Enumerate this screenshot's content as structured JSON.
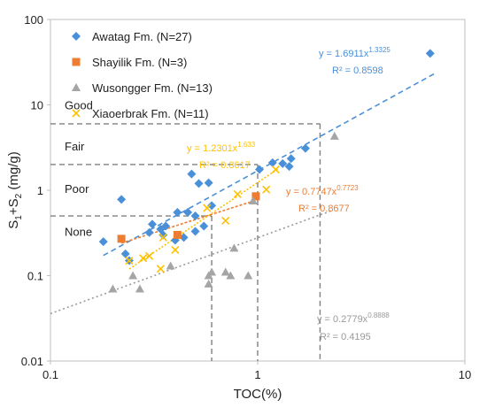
{
  "chart_data": {
    "type": "scatter",
    "xlabel": "TOC(%)",
    "ylabel": {
      "base": "S",
      "sub1": "1",
      "mid": "+S",
      "sub2": "2",
      "tail": " (mg/g)"
    },
    "xscale": "log",
    "yscale": "log",
    "xlim": [
      0.1,
      10
    ],
    "ylim": [
      0.01,
      100
    ],
    "xticks": [
      {
        "v": 0.1,
        "label": "0.1"
      },
      {
        "v": 1,
        "label": "1"
      },
      {
        "v": 10,
        "label": "10"
      }
    ],
    "yticks": [
      {
        "v": 0.01,
        "label": "0.01"
      },
      {
        "v": 0.1,
        "label": "0.1"
      },
      {
        "v": 1,
        "label": "1"
      },
      {
        "v": 10,
        "label": "10"
      },
      {
        "v": 100,
        "label": "100"
      }
    ],
    "legend_position": "top-left",
    "colors": {
      "awatag": "#4a90d9",
      "shayilik": "#ed7d31",
      "wusongger": "#a5a5a5",
      "xiaoerbrak": "#ffc000"
    },
    "series": [
      {
        "name": "Awatag Fm. (N=27)",
        "marker": "diamond",
        "color": "#4a90d9",
        "points": [
          [
            0.18,
            0.25
          ],
          [
            0.22,
            0.78
          ],
          [
            0.23,
            0.18
          ],
          [
            0.24,
            0.15
          ],
          [
            0.3,
            0.32
          ],
          [
            0.31,
            0.4
          ],
          [
            0.34,
            0.35
          ],
          [
            0.35,
            0.3
          ],
          [
            0.4,
            0.26
          ],
          [
            0.41,
            0.55
          ],
          [
            0.46,
            0.55
          ],
          [
            0.48,
            1.55
          ],
          [
            0.5,
            0.5
          ],
          [
            0.52,
            1.2
          ],
          [
            0.55,
            0.38
          ],
          [
            0.58,
            1.22
          ],
          [
            0.6,
            0.66
          ],
          [
            1.02,
            1.75
          ],
          [
            1.18,
            2.1
          ],
          [
            1.32,
            2.05
          ],
          [
            1.42,
            1.9
          ],
          [
            1.45,
            2.35
          ],
          [
            1.7,
            3.1
          ],
          [
            6.8,
            40
          ],
          [
            0.36,
            0.38
          ],
          [
            0.44,
            0.28
          ],
          [
            0.5,
            0.33
          ]
        ]
      },
      {
        "name": "Shayilik Fm. (N=3)",
        "marker": "square",
        "color": "#ed7d31",
        "points": [
          [
            0.22,
            0.27
          ],
          [
            0.41,
            0.3
          ],
          [
            0.98,
            0.85
          ]
        ]
      },
      {
        "name": "Wusongger Fm. (N=13)",
        "marker": "triangle",
        "color": "#a5a5a5",
        "points": [
          [
            0.2,
            0.07
          ],
          [
            0.25,
            0.1
          ],
          [
            0.27,
            0.07
          ],
          [
            0.58,
            0.08
          ],
          [
            0.58,
            0.1
          ],
          [
            0.6,
            0.11
          ],
          [
            0.7,
            0.11
          ],
          [
            0.74,
            0.1
          ],
          [
            0.77,
            0.21
          ],
          [
            0.9,
            0.1
          ],
          [
            0.95,
            0.75
          ],
          [
            2.35,
            4.3
          ],
          [
            0.38,
            0.13
          ]
        ]
      },
      {
        "name": "Xiaoerbrak Fm. (N=11)",
        "marker": "x",
        "color": "#ffc000",
        "points": [
          [
            0.24,
            0.15
          ],
          [
            0.28,
            0.16
          ],
          [
            0.3,
            0.17
          ],
          [
            0.34,
            0.12
          ],
          [
            0.35,
            0.28
          ],
          [
            0.4,
            0.2
          ],
          [
            0.57,
            0.62
          ],
          [
            0.7,
            0.44
          ],
          [
            0.8,
            0.9
          ],
          [
            1.1,
            1.02
          ],
          [
            1.22,
            1.75
          ]
        ]
      }
    ],
    "trendlines": [
      {
        "series": 0,
        "a": 1.6911,
        "b": 1.3325,
        "range": [
          0.18,
          7.2
        ],
        "color": "#4a90d9",
        "dash": "6,4",
        "eq": {
          "prefix": "y = 1.6911x",
          "exp": "1.3325"
        },
        "r2": "R² = 0.8598"
      },
      {
        "series": 1,
        "a": 0.7747,
        "b": 0.7723,
        "range": [
          0.22,
          1.0
        ],
        "color": "#ed7d31",
        "dash": "3,2",
        "eq": {
          "prefix": "y = 0.7747x",
          "exp": "0.7723"
        },
        "r2": "R² = 0.8677"
      },
      {
        "series": 2,
        "a": 0.2779,
        "b": 0.8888,
        "range": [
          0.1,
          2.3
        ],
        "color": "#9a9a9a",
        "dash": "2,3",
        "eq": {
          "prefix": "y = 0.2779x",
          "exp": "0.8888"
        },
        "r2": "R² = 0.4195"
      },
      {
        "series": 3,
        "a": 1.2301,
        "b": 1.633,
        "range": [
          0.24,
          1.25
        ],
        "color": "#ffc000",
        "dash": "2,2",
        "eq": {
          "prefix": "y = 1.2301x",
          "exp": "1.633"
        },
        "r2": "R² = 0.8617"
      }
    ],
    "classes": [
      {
        "label": "Good",
        "y": 10
      },
      {
        "label": "Fair",
        "y": 3.3
      },
      {
        "label": "Poor",
        "y": 1.05
      },
      {
        "label": "None",
        "y": 0.33
      }
    ],
    "boundaries": {
      "horizontal": [
        {
          "y": 6,
          "x_end": 2
        },
        {
          "y": 2,
          "x_end": 1
        },
        {
          "y": 0.5,
          "x_end": 0.6
        }
      ],
      "vertical": [
        {
          "x": 0.6,
          "y_top": 0.5
        },
        {
          "x": 1,
          "y_top": 2
        },
        {
          "x": 2,
          "y_top": 6
        }
      ]
    }
  }
}
